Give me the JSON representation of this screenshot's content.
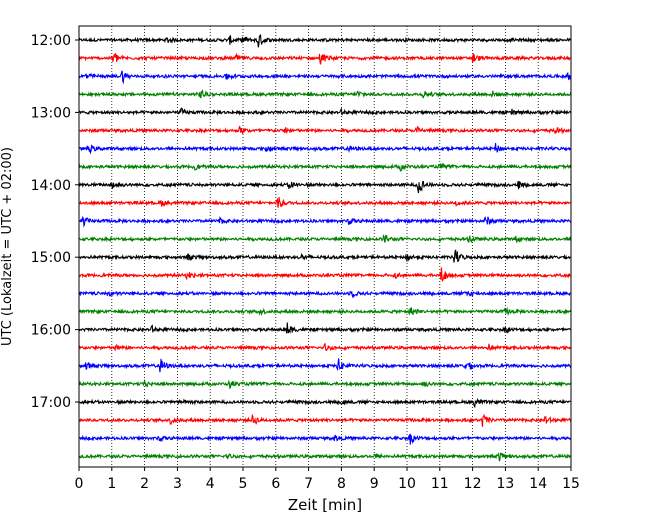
{
  "chart_data": {
    "type": "line",
    "title": "",
    "xlabel": "Zeit  [min]",
    "ylabel": "UTC (Lokalzeit = UTC + 02:00)",
    "xlim": [
      0,
      15
    ],
    "x_ticks": [
      0,
      1,
      2,
      3,
      4,
      5,
      6,
      7,
      8,
      9,
      10,
      11,
      12,
      13,
      14,
      15
    ],
    "grid": "vertical dotted",
    "trace_interval_minutes": 15,
    "y_tick_labels": [
      "12:00",
      "13:00",
      "14:00",
      "15:00",
      "16:00",
      "17:00"
    ],
    "trace_colors": [
      "#000000",
      "#ff0000",
      "#0000ff",
      "#008000"
    ],
    "traces": [
      {
        "start": "12:00",
        "events": [
          [
            4.6,
            0.4
          ],
          [
            5.0,
            0.4
          ],
          [
            5.45,
            1.0
          ],
          [
            2.7,
            0.3
          ]
        ]
      },
      {
        "start": "12:15",
        "events": [
          [
            1.05,
            0.8
          ],
          [
            7.35,
            0.7
          ],
          [
            12.0,
            0.6
          ],
          [
            4.8,
            0.3
          ]
        ]
      },
      {
        "start": "12:30",
        "events": [
          [
            1.3,
            0.8
          ],
          [
            4.5,
            0.5
          ],
          [
            0.2,
            0.4
          ],
          [
            14.9,
            0.4
          ]
        ]
      },
      {
        "start": "12:45",
        "events": [
          [
            3.7,
            0.5
          ],
          [
            8.5,
            0.4
          ],
          [
            10.5,
            0.5
          ],
          [
            12.6,
            0.3
          ]
        ]
      },
      {
        "start": "13:00",
        "events": [
          [
            3.1,
            0.4
          ],
          [
            8.0,
            0.3
          ],
          [
            13.2,
            0.3
          ]
        ]
      },
      {
        "start": "13:15",
        "events": [
          [
            4.9,
            0.4
          ],
          [
            6.3,
            0.3
          ],
          [
            10.3,
            0.4
          ],
          [
            14.5,
            0.3
          ]
        ]
      },
      {
        "start": "13:30",
        "events": [
          [
            0.3,
            0.5
          ],
          [
            5.7,
            0.4
          ],
          [
            12.7,
            0.5
          ],
          [
            8.2,
            0.3
          ]
        ]
      },
      {
        "start": "13:45",
        "events": [
          [
            9.8,
            0.4
          ],
          [
            11.0,
            0.3
          ],
          [
            3.5,
            0.3
          ]
        ]
      },
      {
        "start": "14:00",
        "events": [
          [
            1.0,
            0.6
          ],
          [
            10.35,
            1.0
          ],
          [
            6.4,
            0.5
          ],
          [
            13.4,
            0.4
          ]
        ]
      },
      {
        "start": "14:15",
        "events": [
          [
            6.05,
            0.8
          ],
          [
            11.5,
            0.3
          ],
          [
            2.5,
            0.3
          ]
        ]
      },
      {
        "start": "14:30",
        "events": [
          [
            0.1,
            0.6
          ],
          [
            12.4,
            0.6
          ],
          [
            8.2,
            0.4
          ],
          [
            4.3,
            0.3
          ]
        ]
      },
      {
        "start": "14:45",
        "events": [
          [
            9.3,
            0.5
          ],
          [
            11.9,
            0.4
          ],
          [
            13.3,
            0.3
          ]
        ]
      },
      {
        "start": "15:00",
        "events": [
          [
            11.45,
            1.0
          ],
          [
            10.0,
            0.4
          ],
          [
            3.3,
            0.3
          ],
          [
            6.8,
            0.3
          ]
        ]
      },
      {
        "start": "15:15",
        "events": [
          [
            11.05,
            0.9
          ],
          [
            3.3,
            0.4
          ],
          [
            9.6,
            0.3
          ]
        ]
      },
      {
        "start": "15:30",
        "events": [
          [
            11.8,
            0.5
          ],
          [
            8.3,
            0.4
          ],
          [
            0.9,
            0.3
          ]
        ]
      },
      {
        "start": "15:45",
        "events": [
          [
            10.1,
            0.5
          ],
          [
            5.5,
            0.3
          ],
          [
            13.0,
            0.3
          ]
        ]
      },
      {
        "start": "16:00",
        "events": [
          [
            6.35,
            0.7
          ],
          [
            2.2,
            0.4
          ],
          [
            13.0,
            0.3
          ]
        ]
      },
      {
        "start": "16:15",
        "events": [
          [
            7.5,
            0.4
          ],
          [
            1.1,
            0.3
          ],
          [
            12.5,
            0.3
          ]
        ]
      },
      {
        "start": "16:30",
        "events": [
          [
            2.45,
            1.0
          ],
          [
            7.9,
            0.8
          ],
          [
            11.8,
            0.6
          ],
          [
            0.2,
            0.4
          ]
        ]
      },
      {
        "start": "16:45",
        "events": [
          [
            4.6,
            0.4
          ],
          [
            10.5,
            0.3
          ],
          [
            2.0,
            0.3
          ]
        ]
      },
      {
        "start": "17:00",
        "events": [
          [
            12.05,
            0.5
          ],
          [
            8.0,
            0.3
          ],
          [
            3.2,
            0.3
          ]
        ]
      },
      {
        "start": "17:15",
        "events": [
          [
            5.3,
            0.6
          ],
          [
            12.3,
            0.7
          ],
          [
            14.2,
            0.5
          ],
          [
            2.8,
            0.4
          ]
        ]
      },
      {
        "start": "17:30",
        "events": [
          [
            10.1,
            0.6
          ],
          [
            7.8,
            0.3
          ],
          [
            2.4,
            0.3
          ]
        ]
      },
      {
        "start": "17:45",
        "events": [
          [
            12.8,
            0.5
          ],
          [
            4.5,
            0.3
          ],
          [
            9.0,
            0.3
          ]
        ]
      }
    ]
  }
}
